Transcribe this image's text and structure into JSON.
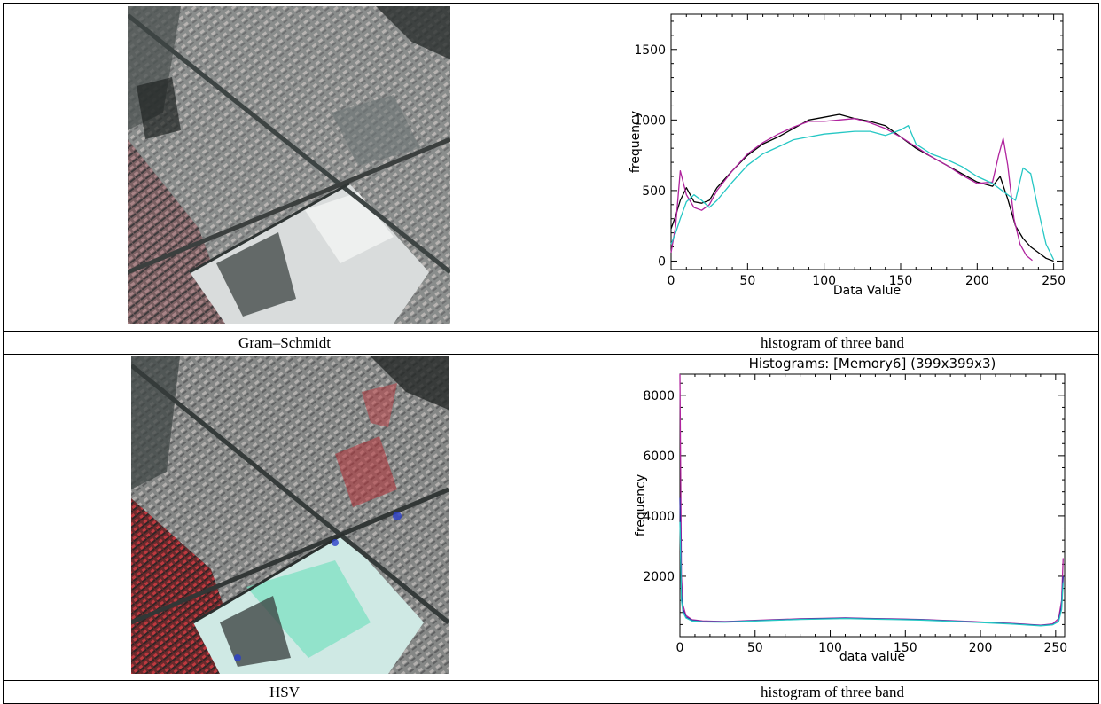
{
  "figure": {
    "cells": [
      {
        "caption": "Gram–Schmidt"
      },
      {
        "caption": "histogram of three band"
      },
      {
        "caption": "HSV"
      },
      {
        "caption": "histogram of three band"
      }
    ]
  },
  "chart_data": [
    {
      "type": "line",
      "title": "",
      "xlabel": "Data Value",
      "ylabel": "frequency",
      "xlim": [
        0,
        256
      ],
      "ylim": [
        -60,
        1750
      ],
      "xticks": [
        0,
        50,
        100,
        150,
        200,
        250
      ],
      "yticks": [
        0,
        500,
        1000,
        1500
      ],
      "grid": false,
      "series": [
        {
          "color": "#000000",
          "x": [
            0,
            3,
            6,
            10,
            15,
            20,
            25,
            30,
            40,
            50,
            60,
            70,
            80,
            90,
            100,
            110,
            120,
            130,
            140,
            150,
            160,
            170,
            180,
            190,
            200,
            210,
            215,
            220,
            225,
            230,
            235,
            240,
            245,
            250
          ],
          "values": [
            230,
            320,
            430,
            520,
            420,
            410,
            430,
            520,
            640,
            750,
            830,
            880,
            940,
            1000,
            1020,
            1040,
            1010,
            990,
            960,
            880,
            800,
            740,
            680,
            620,
            560,
            530,
            600,
            440,
            250,
            160,
            100,
            60,
            20,
            0
          ]
        },
        {
          "color": "#b0239e",
          "x": [
            0,
            3,
            6,
            10,
            15,
            20,
            25,
            30,
            40,
            50,
            60,
            70,
            80,
            90,
            100,
            110,
            120,
            130,
            140,
            150,
            160,
            170,
            180,
            190,
            200,
            210,
            214,
            217,
            220,
            224,
            228,
            232,
            236
          ],
          "values": [
            60,
            250,
            640,
            470,
            380,
            360,
            400,
            500,
            640,
            760,
            840,
            900,
            950,
            990,
            990,
            1000,
            1010,
            980,
            940,
            880,
            810,
            740,
            680,
            610,
            550,
            560,
            750,
            870,
            680,
            300,
            120,
            40,
            5
          ]
        },
        {
          "color": "#25c7c4",
          "x": [
            0,
            3,
            6,
            10,
            15,
            20,
            25,
            30,
            40,
            50,
            60,
            70,
            80,
            90,
            100,
            110,
            120,
            130,
            140,
            150,
            155,
            160,
            170,
            180,
            190,
            200,
            210,
            220,
            225,
            230,
            235,
            240,
            245,
            250
          ],
          "values": [
            120,
            200,
            300,
            420,
            470,
            430,
            380,
            430,
            560,
            680,
            760,
            810,
            860,
            880,
            900,
            910,
            920,
            920,
            890,
            930,
            960,
            830,
            760,
            720,
            670,
            600,
            550,
            470,
            430,
            660,
            620,
            360,
            120,
            10
          ]
        }
      ]
    },
    {
      "type": "line",
      "title": "Histograms: [Memory6] (399x399x3)",
      "xlabel": "data value",
      "ylabel": "frequency",
      "xlim": [
        0,
        256
      ],
      "ylim": [
        0,
        8700
      ],
      "xticks": [
        0,
        50,
        100,
        150,
        200,
        250
      ],
      "yticks": [
        2000,
        4000,
        6000,
        8000
      ],
      "grid": false,
      "series": [
        {
          "color": "#b0239e",
          "x": [
            0,
            1,
            2,
            4,
            8,
            15,
            30,
            50,
            80,
            110,
            130,
            160,
            190,
            220,
            240,
            248,
            252,
            254,
            255
          ],
          "values": [
            8700,
            2000,
            1050,
            700,
            560,
            520,
            500,
            540,
            590,
            620,
            600,
            570,
            510,
            440,
            380,
            420,
            600,
            1200,
            2600
          ]
        },
        {
          "color": "#2a2aa0",
          "x": [
            0,
            1,
            2,
            4,
            8,
            15,
            30,
            50,
            80,
            110,
            130,
            160,
            190,
            220,
            240,
            248,
            252,
            254,
            255
          ],
          "values": [
            4600,
            1400,
            900,
            650,
            540,
            500,
            490,
            530,
            580,
            610,
            590,
            560,
            500,
            430,
            370,
            400,
            520,
            1000,
            2000
          ]
        },
        {
          "color": "#25c7c4",
          "x": [
            0,
            1,
            2,
            4,
            8,
            15,
            30,
            50,
            80,
            110,
            130,
            160,
            190,
            220,
            240,
            248,
            252,
            254,
            255
          ],
          "values": [
            3800,
            1200,
            820,
            620,
            520,
            490,
            480,
            520,
            570,
            600,
            580,
            550,
            490,
            420,
            360,
            390,
            500,
            900,
            1800
          ]
        }
      ]
    }
  ]
}
